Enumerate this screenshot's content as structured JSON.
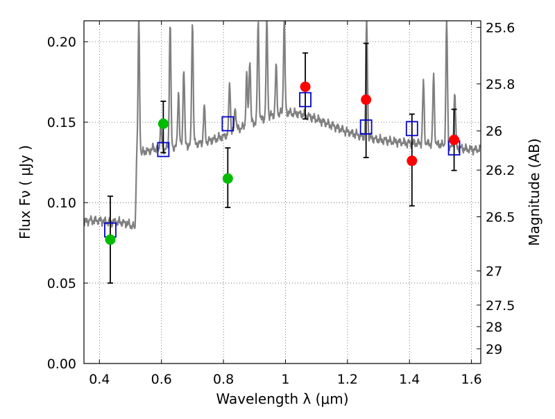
{
  "chart_data": {
    "type": "scatter",
    "title": "",
    "xlabel": "Wavelength  λ (μm)",
    "ylabel": "Flux  Fν  ( μJy )",
    "y2label": "Magnitude (AB)",
    "xlim": [
      0.35,
      1.63
    ],
    "ylim": [
      0.0,
      0.213
    ],
    "grid": true,
    "legend": "none",
    "x_ticks": [
      {
        "value": 0.4,
        "label": "0.4"
      },
      {
        "value": 0.6,
        "label": "0.6"
      },
      {
        "value": 0.8,
        "label": "0.8"
      },
      {
        "value": 1.0,
        "label": "1"
      },
      {
        "value": 1.2,
        "label": "1.2"
      },
      {
        "value": 1.4,
        "label": "1.4"
      },
      {
        "value": 1.6,
        "label": "1.6"
      }
    ],
    "y_ticks": [
      {
        "value": 0.0,
        "label": "0.00"
      },
      {
        "value": 0.05,
        "label": "0.05"
      },
      {
        "value": 0.1,
        "label": "0.10"
      },
      {
        "value": 0.15,
        "label": "0.15"
      },
      {
        "value": 0.2,
        "label": "0.20"
      }
    ],
    "mag_ticks": [
      {
        "value": 25.6,
        "label": "25.6"
      },
      {
        "value": 25.8,
        "label": "25.8"
      },
      {
        "value": 26.0,
        "label": "26"
      },
      {
        "value": 26.2,
        "label": "26.2"
      },
      {
        "value": 26.5,
        "label": "26.5"
      },
      {
        "value": 27.0,
        "label": "27"
      },
      {
        "value": 27.5,
        "label": "27.5"
      },
      {
        "value": 28.0,
        "label": "28"
      },
      {
        "value": 29.0,
        "label": "29"
      }
    ],
    "colors": {
      "sed": "#808080",
      "green": "#00bb00",
      "red": "#ff0000",
      "model": "#0000cc",
      "errorbar": "#000000",
      "grid": "#555555"
    },
    "sed_continuum": [
      [
        0.35,
        0.088
      ],
      [
        0.37,
        0.089
      ],
      [
        0.4,
        0.089
      ],
      [
        0.43,
        0.088
      ],
      [
        0.46,
        0.088
      ],
      [
        0.49,
        0.087
      ],
      [
        0.51,
        0.085
      ],
      [
        0.515,
        0.084
      ],
      [
        0.52,
        0.129
      ],
      [
        0.55,
        0.132
      ],
      [
        0.6,
        0.133
      ],
      [
        0.65,
        0.135
      ],
      [
        0.7,
        0.136
      ],
      [
        0.75,
        0.138
      ],
      [
        0.8,
        0.141
      ],
      [
        0.85,
        0.146
      ],
      [
        0.9,
        0.15
      ],
      [
        0.95,
        0.154
      ],
      [
        1.0,
        0.156
      ],
      [
        1.05,
        0.155
      ],
      [
        1.1,
        0.152
      ],
      [
        1.15,
        0.148
      ],
      [
        1.2,
        0.144
      ],
      [
        1.25,
        0.141
      ],
      [
        1.3,
        0.139
      ],
      [
        1.35,
        0.138
      ],
      [
        1.4,
        0.137
      ],
      [
        1.45,
        0.137
      ],
      [
        1.5,
        0.136
      ],
      [
        1.55,
        0.134
      ],
      [
        1.6,
        0.133
      ],
      [
        1.63,
        0.133
      ]
    ],
    "sed_emission_lines": [
      {
        "x": 0.527,
        "peak": 0.213
      },
      {
        "x": 0.575,
        "peak": 0.135
      },
      {
        "x": 0.598,
        "peak": 0.15
      },
      {
        "x": 0.628,
        "peak": 0.213
      },
      {
        "x": 0.655,
        "peak": 0.17
      },
      {
        "x": 0.672,
        "peak": 0.185
      },
      {
        "x": 0.7,
        "peak": 0.213
      },
      {
        "x": 0.738,
        "peak": 0.16
      },
      {
        "x": 0.82,
        "peak": 0.175
      },
      {
        "x": 0.838,
        "peak": 0.16
      },
      {
        "x": 0.875,
        "peak": 0.18
      },
      {
        "x": 0.885,
        "peak": 0.19
      },
      {
        "x": 0.912,
        "peak": 0.213
      },
      {
        "x": 0.94,
        "peak": 0.213
      },
      {
        "x": 0.97,
        "peak": 0.185
      },
      {
        "x": 0.996,
        "peak": 0.213
      },
      {
        "x": 1.262,
        "peak": 0.213
      },
      {
        "x": 1.445,
        "peak": 0.175
      },
      {
        "x": 1.478,
        "peak": 0.18
      },
      {
        "x": 1.52,
        "peak": 0.213
      },
      {
        "x": 1.546,
        "peak": 0.17
      }
    ],
    "observed_green": [
      {
        "x": 0.435,
        "y": 0.077,
        "err_low": 0.05,
        "err_high": 0.104
      },
      {
        "x": 0.606,
        "y": 0.149,
        "err_low": 0.131,
        "err_high": 0.163
      },
      {
        "x": 0.814,
        "y": 0.115,
        "err_low": 0.097,
        "err_high": 0.134
      }
    ],
    "observed_red": [
      {
        "x": 1.064,
        "y": 0.172,
        "err_low": 0.152,
        "err_high": 0.193
      },
      {
        "x": 1.26,
        "y": 0.164,
        "err_low": 0.128,
        "err_high": 0.199
      },
      {
        "x": 1.408,
        "y": 0.126,
        "err_low": 0.098,
        "err_high": 0.155
      },
      {
        "x": 1.544,
        "y": 0.139,
        "err_low": 0.12,
        "err_high": 0.158
      }
    ],
    "model_fluxes": [
      {
        "x": 0.435,
        "y": 0.083
      },
      {
        "x": 0.606,
        "y": 0.133
      },
      {
        "x": 0.814,
        "y": 0.149
      },
      {
        "x": 1.064,
        "y": 0.164
      },
      {
        "x": 1.26,
        "y": 0.147
      },
      {
        "x": 1.408,
        "y": 0.146
      },
      {
        "x": 1.544,
        "y": 0.134
      }
    ]
  }
}
